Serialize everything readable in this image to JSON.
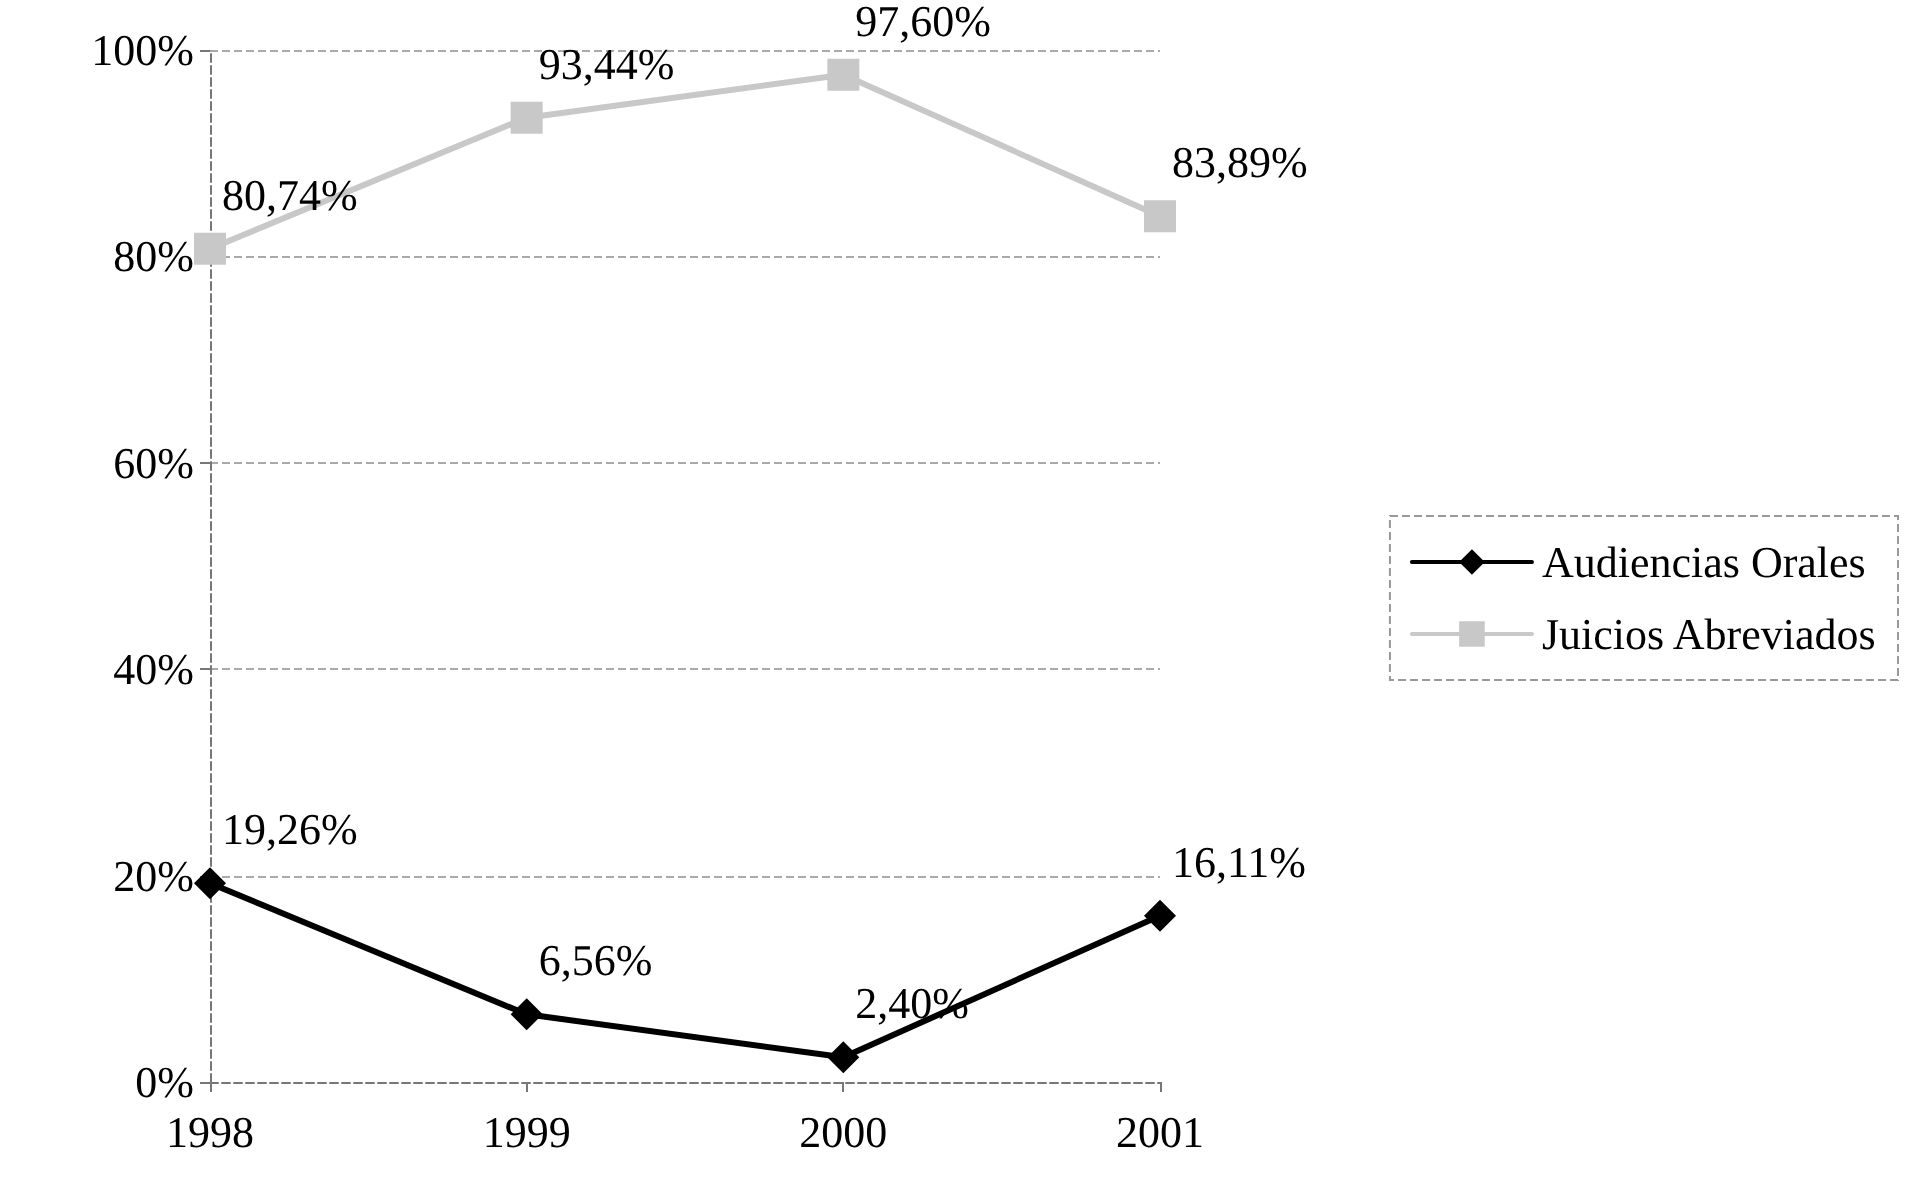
{
  "chart_data": {
    "type": "line",
    "categories": [
      "1998",
      "1999",
      "2000",
      "2001"
    ],
    "series": [
      {
        "name": "Audiencias Orales",
        "color": "#000000",
        "marker": "diamond",
        "values": [
          19.26,
          6.56,
          2.4,
          16.11
        ],
        "value_labels": [
          "19,26%",
          "6,56%",
          "2,40%",
          "16,11%"
        ]
      },
      {
        "name": "Juicios Abreviados",
        "color": "#c8c8c8",
        "marker": "square",
        "values": [
          80.74,
          93.44,
          97.6,
          83.89
        ],
        "value_labels": [
          "80,74%",
          "93,44%",
          "97,60%",
          "83,89%"
        ]
      }
    ],
    "ylim": [
      0,
      100
    ],
    "yticks": [
      {
        "value": 0,
        "label": "0%"
      },
      {
        "value": 20,
        "label": "20%"
      },
      {
        "value": 40,
        "label": "40%"
      },
      {
        "value": 60,
        "label": "60%"
      },
      {
        "value": 80,
        "label": "80%"
      },
      {
        "value": 100,
        "label": "100%"
      }
    ],
    "grid": "y",
    "legend": "right",
    "line_style": "solid"
  }
}
